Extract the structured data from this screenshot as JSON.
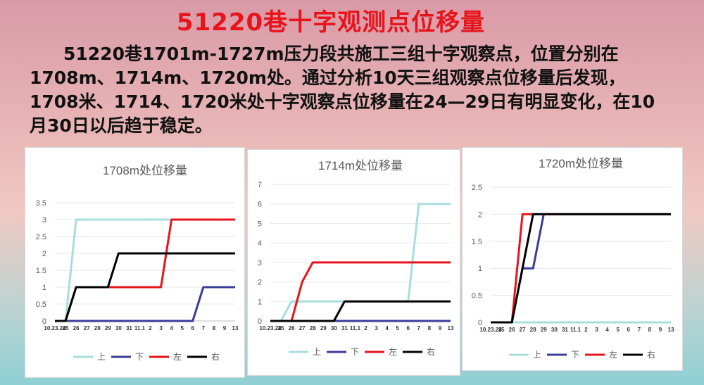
{
  "title": "51220巷十字观测点位移量",
  "paragraph": "51220巷1701m-1727m压力段共施工三组十字观察点，位置分别在1708m、1714m、1720m处。通过分析10天三组观察点位移量后发现，1708米、1714、1720米处十字观察点位移量在24—29日有明显变化，在10月30日以后趋于稳定。",
  "legend": [
    "上",
    "下",
    "左",
    "右"
  ],
  "colors": {
    "上": "#a8dde0",
    "下": "#3a3d9a",
    "左": "#e8141c",
    "右": "#000000"
  },
  "x_labels": [
    "10.23.24",
    "25",
    "26",
    "27",
    "28",
    "29",
    "30",
    "31",
    "11.1",
    "2",
    "3",
    "4",
    "5",
    "6",
    "7",
    "8",
    "9",
    "13"
  ],
  "chart_data": [
    {
      "type": "line",
      "title": "1708m处位移量",
      "categories": [
        "10.23.24",
        "25",
        "26",
        "27",
        "28",
        "29",
        "30",
        "31",
        "11.1",
        "2",
        "3",
        "4",
        "5",
        "6",
        "7",
        "8",
        "9",
        "13"
      ],
      "y_ticks": [
        "0",
        "0.5",
        "1",
        "1.5",
        "2",
        "2.5",
        "3",
        "3.5"
      ],
      "ylim": [
        0,
        3.5
      ],
      "grid": true,
      "legend_position": "bottom",
      "series": [
        {
          "name": "上",
          "values": [
            0,
            0,
            3,
            3,
            3,
            3,
            3,
            3,
            3,
            3,
            3,
            3,
            3,
            3,
            3,
            3,
            3,
            3
          ]
        },
        {
          "name": "下",
          "values": [
            0,
            0,
            0,
            0,
            0,
            0,
            0,
            0,
            0,
            0,
            0,
            0,
            0,
            0,
            1,
            1,
            1,
            1
          ]
        },
        {
          "name": "左",
          "values": [
            0,
            0,
            1,
            1,
            1,
            1,
            1,
            1,
            1,
            1,
            1,
            3,
            3,
            3,
            3,
            3,
            3,
            3
          ]
        },
        {
          "name": "右",
          "values": [
            0,
            0,
            1,
            1,
            1,
            1,
            2,
            2,
            2,
            2,
            2,
            2,
            2,
            2,
            2,
            2,
            2,
            2
          ]
        }
      ]
    },
    {
      "type": "line",
      "title": "1714m处位移量",
      "categories": [
        "10.23.24",
        "25",
        "26",
        "27",
        "28",
        "29",
        "30",
        "31",
        "11.1",
        "2",
        "3",
        "4",
        "5",
        "6",
        "7",
        "8",
        "9",
        "13"
      ],
      "y_ticks": [
        "0",
        "1",
        "2",
        "3",
        "4",
        "5",
        "6",
        "7"
      ],
      "ylim": [
        0,
        7
      ],
      "grid": true,
      "legend_position": "bottom",
      "series": [
        {
          "name": "上",
          "values": [
            0,
            0,
            1,
            1,
            1,
            1,
            1,
            1,
            1,
            1,
            1,
            1,
            1,
            1,
            6,
            6,
            6,
            6
          ]
        },
        {
          "name": "下",
          "values": [
            0,
            0,
            0,
            0,
            0,
            0,
            0,
            0,
            0,
            0,
            0,
            0,
            0,
            0,
            0,
            0,
            0,
            0
          ]
        },
        {
          "name": "左",
          "values": [
            0,
            0,
            0,
            2,
            3,
            3,
            3,
            3,
            3,
            3,
            3,
            3,
            3,
            3,
            3,
            3,
            3,
            3
          ]
        },
        {
          "name": "右",
          "values": [
            0,
            0,
            0,
            0,
            0,
            0,
            0,
            1,
            1,
            1,
            1,
            1,
            1,
            1,
            1,
            1,
            1,
            1
          ]
        }
      ]
    },
    {
      "type": "line",
      "title": "1720m处位移量",
      "categories": [
        "10.23.24",
        "25",
        "26",
        "27",
        "28",
        "29",
        "30",
        "31",
        "11.1",
        "2",
        "3",
        "4",
        "5",
        "6",
        "7",
        "8",
        "9",
        "13"
      ],
      "y_ticks": [
        "0",
        "0.5",
        "1",
        "1.5",
        "2",
        "2.5"
      ],
      "ylim": [
        0,
        2.5
      ],
      "grid": true,
      "legend_position": "bottom",
      "series": [
        {
          "name": "上",
          "values": [
            0,
            0,
            0,
            0,
            0,
            0,
            0,
            0,
            0,
            0,
            0,
            0,
            0,
            0,
            0,
            0,
            0,
            0
          ]
        },
        {
          "name": "下",
          "values": [
            0,
            0,
            0,
            1,
            1,
            2,
            2,
            2,
            2,
            2,
            2,
            2,
            2,
            2,
            2,
            2,
            2,
            2
          ]
        },
        {
          "name": "左",
          "values": [
            0,
            0,
            0,
            2,
            2,
            2,
            2,
            2,
            2,
            2,
            2,
            2,
            2,
            2,
            2,
            2,
            2,
            2
          ]
        },
        {
          "name": "右",
          "values": [
            0,
            0,
            0,
            1,
            2,
            2,
            2,
            2,
            2,
            2,
            2,
            2,
            2,
            2,
            2,
            2,
            2,
            2
          ]
        }
      ]
    }
  ]
}
